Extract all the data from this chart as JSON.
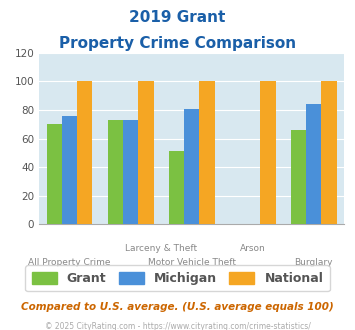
{
  "title_line1": "2019 Grant",
  "title_line2": "Property Crime Comparison",
  "grant": [
    70,
    73,
    51,
    0,
    66
  ],
  "michigan": [
    76,
    73,
    81,
    0,
    84
  ],
  "national": [
    100,
    100,
    100,
    100,
    100
  ],
  "color_grant": "#7bc142",
  "color_michigan": "#4a90d9",
  "color_national": "#f5a623",
  "ylim": [
    0,
    120
  ],
  "yticks": [
    0,
    20,
    40,
    60,
    80,
    100,
    120
  ],
  "background_color": "#d8e8f0",
  "legend_labels": [
    "Grant",
    "Michigan",
    "National"
  ],
  "footnote1": "Compared to U.S. average. (U.S. average equals 100)",
  "footnote2": "© 2025 CityRating.com - https://www.cityrating.com/crime-statistics/",
  "bar_width": 0.25,
  "top_xlabels": [
    [
      1.5,
      "Larceny & Theft"
    ],
    [
      3,
      "Arson"
    ]
  ],
  "bottom_xlabels": [
    [
      0,
      "All Property Crime"
    ],
    [
      2,
      "Motor Vehicle Theft"
    ],
    [
      4,
      "Burglary"
    ]
  ]
}
